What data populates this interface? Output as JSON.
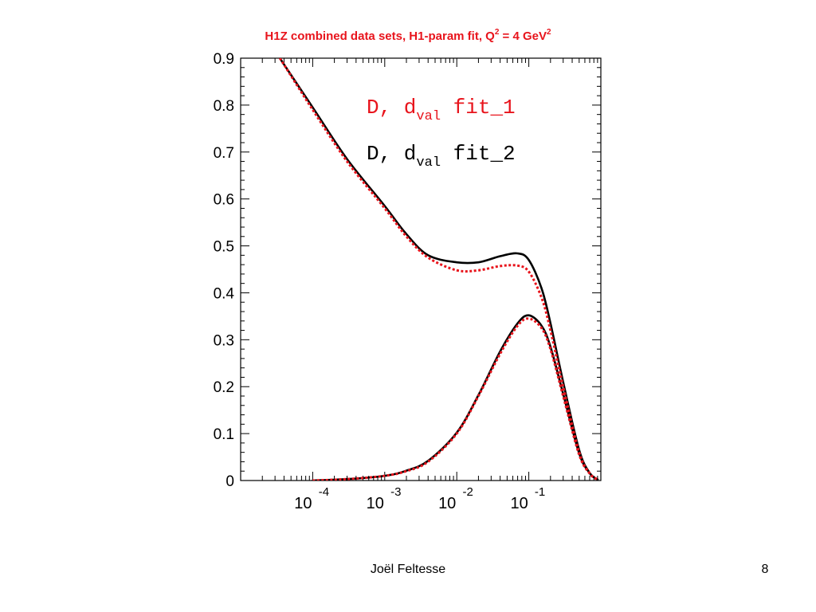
{
  "chart_data": {
    "type": "line",
    "title": "H1Z combined data sets, H1-param fit, Q",
    "title_parts": {
      "prefix": "H1Z combined data sets, H1-param fit, Q",
      "q_exp": "2",
      "middle": " = 4 GeV",
      "gev_exp": "2"
    },
    "xscale": "log",
    "xlim": [
      1e-05,
      1
    ],
    "ylim": [
      0,
      0.9
    ],
    "yticks": [
      "0",
      "0.1",
      "0.2",
      "0.3",
      "0.4",
      "0.5",
      "0.6",
      "0.7",
      "0.8",
      "0.9"
    ],
    "xticks": [
      {
        "base": "10",
        "exp": "-4"
      },
      {
        "base": "10",
        "exp": "-3"
      },
      {
        "base": "10",
        "exp": "-2"
      },
      {
        "base": "10",
        "exp": "-1"
      }
    ],
    "legend": [
      {
        "main": "D, d",
        "sub": "val",
        "tail": " fit_1",
        "color": "#e8141c"
      },
      {
        "main": "D, d",
        "sub": "val",
        "tail": " fit_2",
        "color": "#000000"
      }
    ],
    "series": [
      {
        "name": "fit_1",
        "color": "#e8141c",
        "style": "dotted",
        "curves": [
          {
            "x": [
              3.5e-05,
              0.0001,
              0.0003,
              0.001,
              0.002,
              0.004,
              0.01,
              0.02,
              0.04,
              0.07,
              0.1,
              0.15,
              0.2,
              0.3,
              0.5,
              0.7,
              0.9
            ],
            "y": [
              0.9,
              0.79,
              0.68,
              0.58,
              0.52,
              0.475,
              0.448,
              0.448,
              0.457,
              0.458,
              0.445,
              0.39,
              0.32,
              0.2,
              0.06,
              0.015,
              0.002
            ]
          },
          {
            "x": [
              0.0001,
              0.0003,
              0.001,
              0.002,
              0.004,
              0.01,
              0.02,
              0.04,
              0.07,
              0.1,
              0.15,
              0.2,
              0.3,
              0.5,
              0.7,
              0.9
            ],
            "y": [
              0.0,
              0.003,
              0.01,
              0.02,
              0.04,
              0.1,
              0.18,
              0.27,
              0.33,
              0.345,
              0.325,
              0.28,
              0.18,
              0.055,
              0.015,
              0.002
            ]
          }
        ]
      },
      {
        "name": "fit_2",
        "color": "#000000",
        "style": "solid",
        "curves": [
          {
            "x": [
              3.5e-05,
              0.0001,
              0.0003,
              0.001,
              0.002,
              0.004,
              0.01,
              0.02,
              0.04,
              0.07,
              0.1,
              0.15,
              0.2,
              0.3,
              0.5,
              0.7,
              0.9
            ],
            "y": [
              0.9,
              0.795,
              0.685,
              0.585,
              0.525,
              0.48,
              0.465,
              0.465,
              0.478,
              0.484,
              0.47,
              0.41,
              0.335,
              0.21,
              0.065,
              0.016,
              0.002
            ]
          },
          {
            "x": [
              0.0001,
              0.0003,
              0.001,
              0.002,
              0.004,
              0.01,
              0.02,
              0.04,
              0.07,
              0.1,
              0.15,
              0.2,
              0.3,
              0.5,
              0.7,
              0.9
            ],
            "y": [
              0.0,
              0.003,
              0.01,
              0.021,
              0.042,
              0.102,
              0.182,
              0.275,
              0.335,
              0.352,
              0.33,
              0.285,
              0.185,
              0.058,
              0.016,
              0.002
            ]
          }
        ]
      }
    ]
  },
  "footer": {
    "author": "Joël Feltesse",
    "page": "8"
  }
}
